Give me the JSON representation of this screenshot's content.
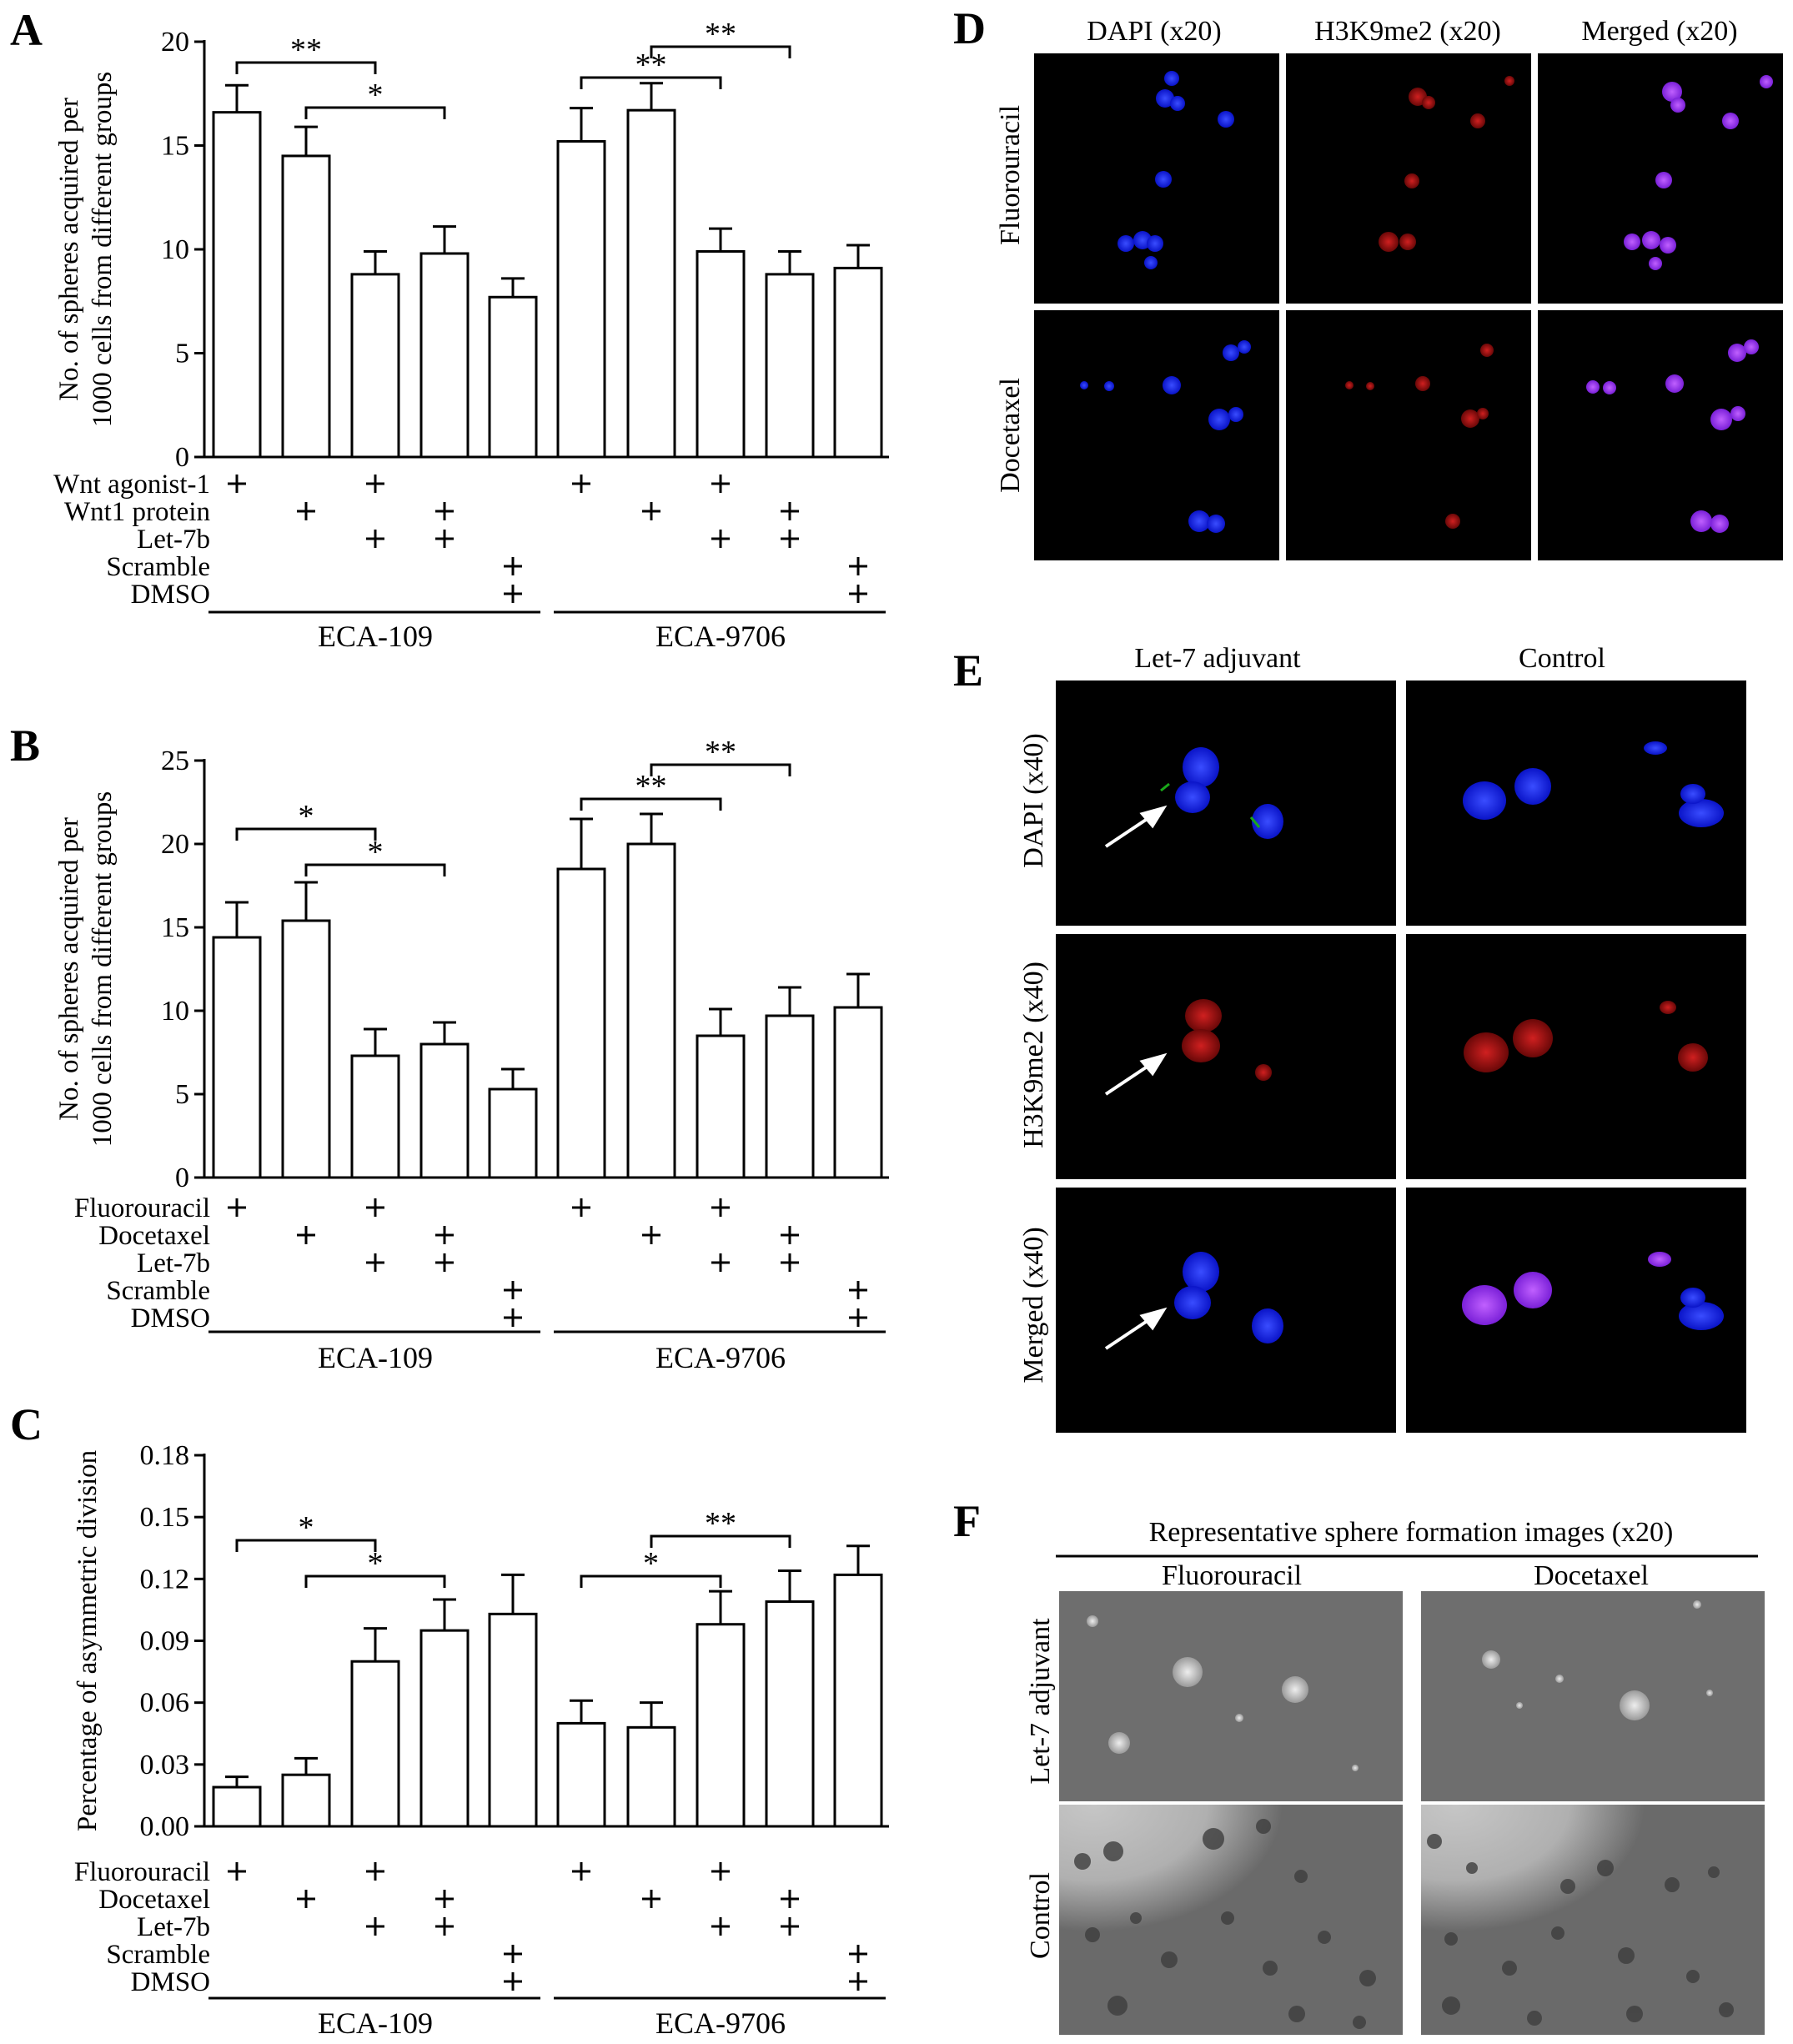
{
  "panels": {
    "A": {
      "letter": "A"
    },
    "B": {
      "letter": "B"
    },
    "C": {
      "letter": "C"
    },
    "D": {
      "letter": "D",
      "col_titles": [
        "DAPI (x20)",
        "H3K9me2 (x20)",
        "Merged (x20)"
      ],
      "row_titles": [
        "Fluorouracil",
        "Docetaxel"
      ]
    },
    "E": {
      "letter": "E",
      "col_titles": [
        "Let-7 adjuvant",
        "Control"
      ],
      "row_titles": [
        "DAPI (x40)",
        "H3K9me2 (x40)",
        "Merged (x40)"
      ]
    },
    "F": {
      "letter": "F",
      "title": "Representative sphere formation images (x20)",
      "col_titles": [
        "Fluorouracil",
        "Docetaxel"
      ],
      "row_titles": [
        "Let-7 adjuvant",
        "Control"
      ]
    }
  },
  "chart_data": [
    {
      "panel": "A",
      "type": "bar",
      "ylabel": [
        "No. of spheres acquired per",
        "1000 cells from different groups"
      ],
      "ylim": [
        0,
        20
      ],
      "yticks": [
        "0",
        "5",
        "10",
        "15",
        "20"
      ],
      "values": [
        16.6,
        14.5,
        8.8,
        9.8,
        7.7,
        15.2,
        16.7,
        9.9,
        8.8,
        9.1
      ],
      "errors": [
        1.3,
        1.4,
        1.1,
        1.3,
        0.9,
        1.6,
        1.3,
        1.1,
        1.1,
        1.1
      ],
      "groups": [
        "ECA-109",
        "ECA-9706"
      ],
      "treatment_rows": [
        {
          "label": "Wnt agonist-1",
          "marks": [
            1,
            0,
            1,
            0,
            0,
            1,
            0,
            1,
            0,
            0
          ]
        },
        {
          "label": "Wnt1 protein",
          "marks": [
            0,
            1,
            0,
            1,
            0,
            0,
            1,
            0,
            1,
            0
          ]
        },
        {
          "label": "Let-7b",
          "marks": [
            0,
            0,
            1,
            1,
            0,
            0,
            0,
            1,
            1,
            0
          ]
        },
        {
          "label": "Scramble",
          "marks": [
            0,
            0,
            0,
            0,
            1,
            0,
            0,
            0,
            0,
            1
          ]
        },
        {
          "label": "DMSO",
          "marks": [
            0,
            0,
            0,
            0,
            1,
            0,
            0,
            0,
            0,
            1
          ]
        }
      ],
      "significance": [
        {
          "from": 0,
          "to": 2,
          "label": "**"
        },
        {
          "from": 1,
          "to": 3,
          "label": "*"
        },
        {
          "from": 5,
          "to": 7,
          "label": "**"
        },
        {
          "from": 6,
          "to": 8,
          "label": "**"
        }
      ]
    },
    {
      "panel": "B",
      "type": "bar",
      "ylabel": [
        "No. of spheres acquired per",
        "1000 cells from different groups"
      ],
      "ylim": [
        0,
        25
      ],
      "yticks": [
        "0",
        "5",
        "10",
        "15",
        "20",
        "25"
      ],
      "values": [
        14.4,
        15.4,
        7.3,
        8.0,
        5.3,
        18.5,
        20.0,
        8.5,
        9.7,
        10.2
      ],
      "errors": [
        2.1,
        2.3,
        1.6,
        1.3,
        1.2,
        3.0,
        1.8,
        1.6,
        1.7,
        2.0
      ],
      "groups": [
        "ECA-109",
        "ECA-9706"
      ],
      "treatment_rows": [
        {
          "label": "Fluorouracil",
          "marks": [
            1,
            0,
            1,
            0,
            0,
            1,
            0,
            1,
            0,
            0
          ]
        },
        {
          "label": "Docetaxel",
          "marks": [
            0,
            1,
            0,
            1,
            0,
            0,
            1,
            0,
            1,
            0
          ]
        },
        {
          "label": "Let-7b",
          "marks": [
            0,
            0,
            1,
            1,
            0,
            0,
            0,
            1,
            1,
            0
          ]
        },
        {
          "label": "Scramble",
          "marks": [
            0,
            0,
            0,
            0,
            1,
            0,
            0,
            0,
            0,
            1
          ]
        },
        {
          "label": "DMSO",
          "marks": [
            0,
            0,
            0,
            0,
            1,
            0,
            0,
            0,
            0,
            1
          ]
        }
      ],
      "significance": [
        {
          "from": 0,
          "to": 2,
          "label": "*"
        },
        {
          "from": 1,
          "to": 3,
          "label": "*"
        },
        {
          "from": 5,
          "to": 7,
          "label": "**"
        },
        {
          "from": 6,
          "to": 8,
          "label": "**"
        }
      ]
    },
    {
      "panel": "C",
      "type": "bar",
      "ylabel": [
        "Percentage of asymmetric division"
      ],
      "ylim": [
        0,
        0.18
      ],
      "yticks": [
        "0.00",
        "0.03",
        "0.06",
        "0.09",
        "0.12",
        "0.15",
        "0.18"
      ],
      "values": [
        0.019,
        0.025,
        0.08,
        0.095,
        0.103,
        0.05,
        0.048,
        0.098,
        0.109,
        0.122
      ],
      "errors": [
        0.005,
        0.008,
        0.016,
        0.015,
        0.019,
        0.011,
        0.012,
        0.016,
        0.015,
        0.014
      ],
      "groups": [
        "ECA-109",
        "ECA-9706"
      ],
      "treatment_rows": [
        {
          "label": "Fluorouracil",
          "marks": [
            1,
            0,
            1,
            0,
            0,
            1,
            0,
            1,
            0,
            0
          ]
        },
        {
          "label": "Docetaxel",
          "marks": [
            0,
            1,
            0,
            1,
            0,
            0,
            1,
            0,
            1,
            0
          ]
        },
        {
          "label": "Let-7b",
          "marks": [
            0,
            0,
            1,
            1,
            0,
            0,
            0,
            1,
            1,
            0
          ]
        },
        {
          "label": "Scramble",
          "marks": [
            0,
            0,
            0,
            0,
            1,
            0,
            0,
            0,
            0,
            1
          ]
        },
        {
          "label": "DMSO",
          "marks": [
            0,
            0,
            0,
            0,
            1,
            0,
            0,
            0,
            0,
            1
          ]
        }
      ],
      "significance": [
        {
          "from": 0,
          "to": 2,
          "label": "*"
        },
        {
          "from": 1,
          "to": 3,
          "label": "*"
        },
        {
          "from": 5,
          "to": 7,
          "label": "*"
        },
        {
          "from": 6,
          "to": 8,
          "label": "**"
        }
      ]
    }
  ]
}
